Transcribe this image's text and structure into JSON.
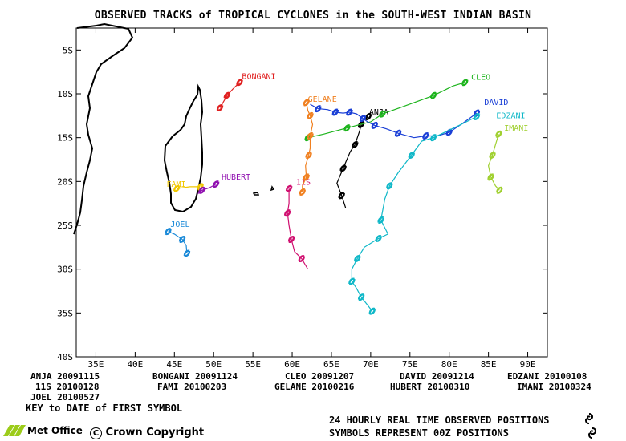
{
  "title": "OBSERVED TRACKS of TROPICAL CYCLONES in the SOUTH-WEST INDIAN BASIN",
  "axes": {
    "x_ticks": [
      "35E",
      "40E",
      "45E",
      "50E",
      "55E",
      "60E",
      "65E",
      "70E",
      "75E",
      "80E",
      "85E",
      "90E"
    ],
    "y_ticks": [
      "5S",
      "10S",
      "15S",
      "20S",
      "25S",
      "30S",
      "35S",
      "40S"
    ]
  },
  "storms": [
    {
      "name": "ANJA",
      "date": "20091115",
      "color": "#000000",
      "track": [
        [
          69.7,
          12.6
        ],
        [
          69.2,
          12.9
        ],
        [
          68.8,
          13.5
        ],
        [
          68.6,
          14.2
        ],
        [
          68.0,
          15.8
        ],
        [
          67.4,
          16.6
        ],
        [
          66.5,
          18.5
        ],
        [
          65.7,
          20.2
        ],
        [
          66.3,
          21.6
        ],
        [
          66.8,
          23.0
        ]
      ]
    },
    {
      "name": "BONGANI",
      "date": "20091124",
      "color": "#e02020",
      "track": [
        [
          53.3,
          8.7
        ],
        [
          52.4,
          9.5
        ],
        [
          51.7,
          10.2
        ],
        [
          51.2,
          11.0
        ],
        [
          50.8,
          11.6
        ]
      ]
    },
    {
      "name": "CLEO",
      "date": "20091207",
      "color": "#1db41d",
      "track": [
        [
          82.0,
          8.7
        ],
        [
          80.5,
          9.1
        ],
        [
          78.0,
          10.2
        ],
        [
          74.0,
          11.5
        ],
        [
          71.5,
          12.3
        ],
        [
          70.0,
          13.2
        ],
        [
          67.0,
          13.9
        ],
        [
          64.0,
          14.6
        ],
        [
          62.0,
          15.0
        ]
      ]
    },
    {
      "name": "DAVID",
      "date": "20091214",
      "color": "#1a3fd6",
      "track": [
        [
          83.5,
          12.2
        ],
        [
          81.5,
          13.5
        ],
        [
          80.0,
          14.4
        ],
        [
          78.5,
          14.8
        ],
        [
          77.0,
          14.8
        ],
        [
          75.5,
          15.0
        ],
        [
          73.5,
          14.5
        ],
        [
          72.0,
          14.0
        ],
        [
          70.5,
          13.6
        ],
        [
          69.6,
          13.2
        ],
        [
          69.0,
          12.8
        ],
        [
          68.2,
          12.3
        ],
        [
          67.3,
          12.1
        ],
        [
          66.5,
          12.2
        ],
        [
          65.5,
          12.1
        ],
        [
          64.5,
          11.8
        ],
        [
          63.3,
          11.7
        ],
        [
          62.3,
          11.2
        ]
      ]
    },
    {
      "name": "EDZANI",
      "date": "20100108",
      "color": "#10b8c8",
      "track": [
        [
          83.5,
          12.6
        ],
        [
          81.5,
          13.5
        ],
        [
          78.0,
          15.0
        ],
        [
          76.5,
          15.4
        ],
        [
          75.2,
          17.0
        ],
        [
          73.5,
          19.0
        ],
        [
          72.4,
          20.5
        ],
        [
          71.8,
          22.0
        ],
        [
          71.3,
          24.4
        ],
        [
          72.2,
          26.0
        ],
        [
          71.0,
          26.5
        ],
        [
          69.2,
          27.5
        ],
        [
          68.3,
          28.8
        ],
        [
          67.6,
          30.0
        ],
        [
          67.6,
          31.4
        ],
        [
          68.2,
          32.2
        ],
        [
          68.8,
          33.2
        ],
        [
          69.6,
          34.1
        ],
        [
          70.2,
          34.8
        ]
      ]
    },
    {
      "name": "11S",
      "date": "20100128",
      "color": "#d01070",
      "track": [
        [
          59.6,
          20.8
        ],
        [
          59.6,
          22.5
        ],
        [
          59.4,
          23.6
        ],
        [
          59.6,
          25.0
        ],
        [
          59.9,
          26.6
        ],
        [
          60.3,
          28.0
        ],
        [
          61.2,
          28.8
        ],
        [
          62.0,
          30.0
        ]
      ]
    },
    {
      "name": "FAMI",
      "date": "20100203",
      "color": "#f0c800",
      "track": [
        [
          45.3,
          20.8
        ],
        [
          47.0,
          20.6
        ],
        [
          48.3,
          20.6
        ]
      ]
    },
    {
      "name": "GELANE",
      "date": "20100216",
      "color": "#f08020",
      "track": [
        [
          61.8,
          11.0
        ],
        [
          62.0,
          11.9
        ],
        [
          62.3,
          12.5
        ],
        [
          62.6,
          13.5
        ],
        [
          62.3,
          14.8
        ],
        [
          62.3,
          16.2
        ],
        [
          62.1,
          17.0
        ],
        [
          61.7,
          18.2
        ],
        [
          61.8,
          19.5
        ],
        [
          61.3,
          20.5
        ],
        [
          61.3,
          21.2
        ]
      ]
    },
    {
      "name": "HUBERT",
      "date": "20100310",
      "color": "#9010b0",
      "track": [
        [
          50.3,
          20.3
        ],
        [
          49.5,
          20.7
        ],
        [
          48.5,
          21.0
        ],
        [
          48.0,
          21.4
        ]
      ]
    },
    {
      "name": "IMANI",
      "date": "20100324",
      "color": "#a0d030",
      "track": [
        [
          86.3,
          14.6
        ],
        [
          86.0,
          15.5
        ],
        [
          85.5,
          17.0
        ],
        [
          85.0,
          18.2
        ],
        [
          85.3,
          19.5
        ],
        [
          85.9,
          20.5
        ],
        [
          86.4,
          21.0
        ]
      ]
    },
    {
      "name": "JOEL",
      "date": "20100527",
      "color": "#1b8ad8",
      "track": [
        [
          44.2,
          25.7
        ],
        [
          45.0,
          26.0
        ],
        [
          46.0,
          26.6
        ],
        [
          46.5,
          27.3
        ],
        [
          46.6,
          28.2
        ]
      ]
    }
  ],
  "legend_key": "KEY to DATE of FIRST SYMBOL",
  "footer": {
    "line1": "24 HOURLY REAL TIME OBSERVED POSITIONS",
    "line2": "SYMBOLS REPRESENT 00Z POSITIONS",
    "org": "Met Office",
    "copyright": "Crown Copyright"
  },
  "islands_label": ""
}
